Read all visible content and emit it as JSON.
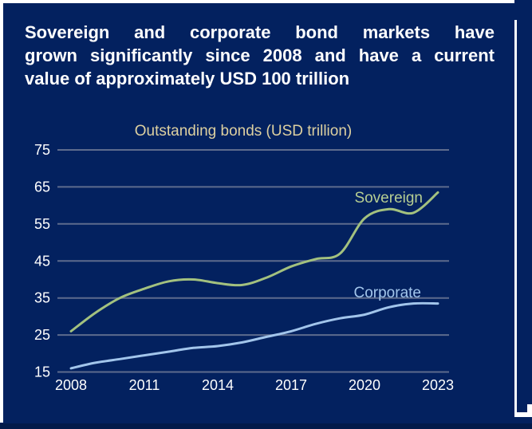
{
  "page": {
    "slide_color": "#03215f",
    "bottom_strip_color": "#021a4a",
    "canvas_color": "#ffffff"
  },
  "slide": {
    "title": "Sovereign and corporate bond markets have grown significantly since 2008 and have a current value of approximately USD 100 trillion",
    "title_lines": [
      "Sovereign and corporate bond markets have",
      "grown significantly since 2008 and have a current",
      "value of approximately USD 100 trillion"
    ],
    "title_color": "#ffffff"
  },
  "chart_data": {
    "type": "line",
    "title": "Outstanding bonds (USD trillion)",
    "title_color": "#ddd0a0",
    "x": [
      2008,
      2009,
      2010,
      2011,
      2012,
      2013,
      2014,
      2015,
      2016,
      2017,
      2018,
      2019,
      2020,
      2021,
      2022,
      2023
    ],
    "x_tick_labels": [
      "2008",
      "2011",
      "2014",
      "2017",
      "2020",
      "2023"
    ],
    "y_ticks": [
      15,
      25,
      35,
      45,
      55,
      65,
      75
    ],
    "ylim": [
      15,
      75
    ],
    "grid": true,
    "gridline_color": "#5d6b8d",
    "tick_label_color": "#ffffff",
    "legend_position": "inline-labels",
    "series": [
      {
        "name": "Sovereign",
        "color": "#a3c17f",
        "label_color": "#b6ce92",
        "values": [
          26,
          31,
          35,
          37.5,
          39.5,
          40,
          39,
          38.5,
          40.5,
          43.5,
          45.5,
          47,
          56.5,
          59,
          58,
          63.5
        ]
      },
      {
        "name": "Corporate",
        "color": "#a2c5eb",
        "label_color": "#a2c5eb",
        "values": [
          16,
          17.5,
          18.5,
          19.5,
          20.5,
          21.5,
          22,
          23,
          24.5,
          26,
          28,
          29.5,
          30.5,
          32.5,
          33.5,
          33.5
        ]
      }
    ]
  }
}
